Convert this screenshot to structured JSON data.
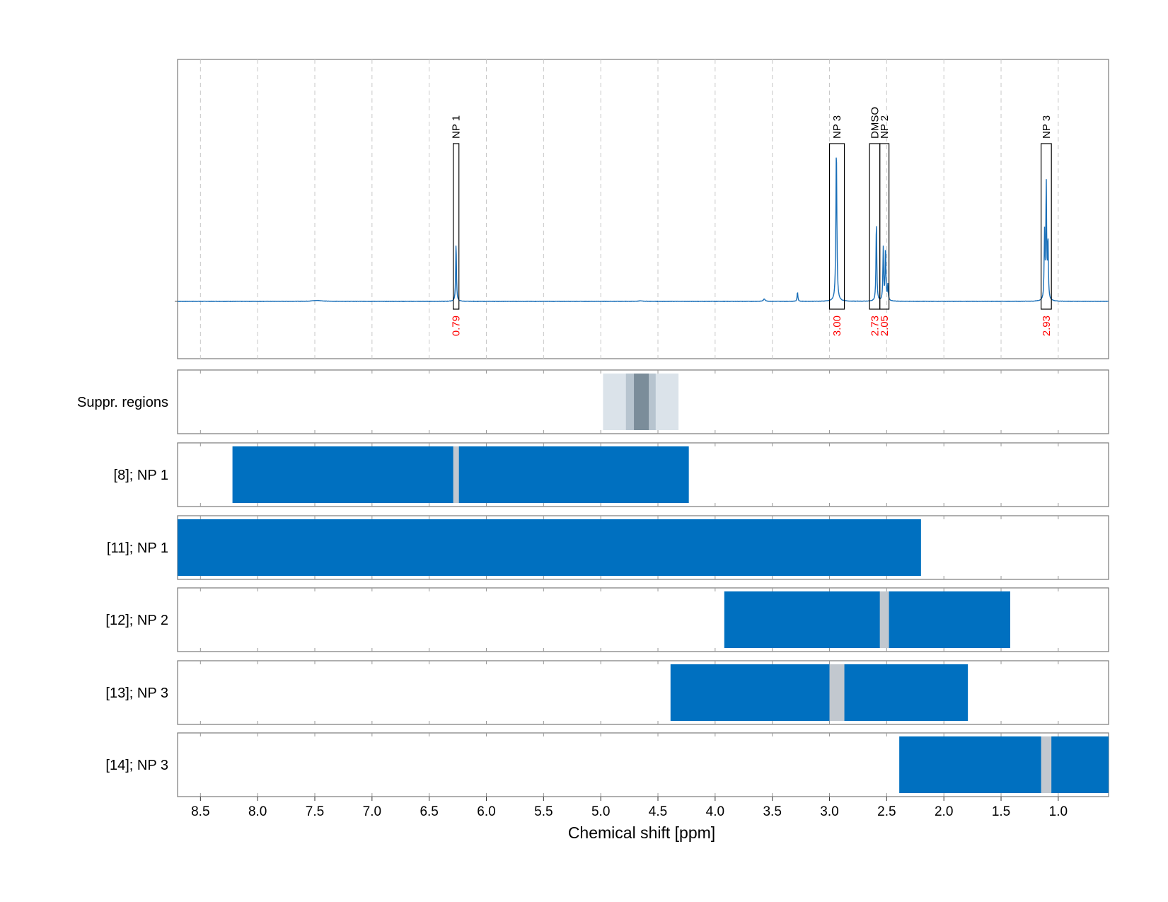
{
  "chart_data": {
    "type": "line",
    "xlabel": "Chemical shift [ppm]",
    "xlim": [
      8.7,
      0.56
    ],
    "x_ticks": [
      8.5,
      8.0,
      7.5,
      7.0,
      6.5,
      6.0,
      5.5,
      5.0,
      4.5,
      4.0,
      3.5,
      3.0,
      2.5,
      2.0,
      1.5,
      1.0
    ],
    "x_tick_labels": [
      "8.5",
      "8.0",
      "7.5",
      "7.0",
      "6.5",
      "6.0",
      "5.5",
      "5.0",
      "4.5",
      "4.0",
      "3.5",
      "3.0",
      "2.5",
      "2.0",
      "1.5",
      "1.0"
    ],
    "grid": true,
    "colors": {
      "spectrum": "#1a6fb8",
      "fragment": "#0070c0",
      "gap": "#c2c8cf",
      "integral_text": "#ff0000",
      "frame": "#7a7a7a"
    },
    "spectrum": {
      "baseline_noise": 0.002,
      "peaks": [
        {
          "center": 6.265,
          "height": 0.38,
          "width": 0.004
        },
        {
          "center": 2.94,
          "height": 0.99,
          "width": 0.005
        },
        {
          "center": 2.59,
          "height": 0.52,
          "width": 0.004
        },
        {
          "center": 2.53,
          "height": 0.34,
          "width": 0.004
        },
        {
          "center": 2.51,
          "height": 0.35,
          "width": 0.004
        },
        {
          "center": 2.49,
          "height": 0.1,
          "width": 0.004
        },
        {
          "center": 1.12,
          "height": 0.42,
          "width": 0.004
        },
        {
          "center": 1.105,
          "height": 0.75,
          "width": 0.004
        },
        {
          "center": 1.09,
          "height": 0.38,
          "width": 0.004
        },
        {
          "center": 3.28,
          "height": 0.06,
          "width": 0.004
        },
        {
          "center": 3.57,
          "height": 0.015,
          "width": 0.01
        },
        {
          "center": 7.48,
          "height": 0.006,
          "width": 0.05
        },
        {
          "center": 4.65,
          "height": 0.003,
          "width": 0.03
        }
      ]
    },
    "annotated_regions": [
      {
        "label": "NP 1",
        "from": 6.29,
        "to": 6.24,
        "integral": "0.79"
      },
      {
        "label": "NP 3",
        "from": 3.0,
        "to": 2.87,
        "integral": "3.00"
      },
      {
        "label": "DMSO",
        "from": 2.65,
        "to": 2.56,
        "integral": "2.73"
      },
      {
        "label": "NP 2",
        "from": 2.56,
        "to": 2.48,
        "integral": "2.05"
      },
      {
        "label": "NP 3",
        "from": 1.15,
        "to": 1.06,
        "integral": "2.93"
      }
    ],
    "suppression_row": {
      "label": "Suppr. regions",
      "bands": [
        {
          "from": 4.98,
          "to": 4.32,
          "level": "light"
        },
        {
          "from": 4.78,
          "to": 4.52,
          "level": "medium"
        },
        {
          "from": 4.71,
          "to": 4.58,
          "level": "dark"
        }
      ]
    },
    "fragment_rows": [
      {
        "label": "[8]; NP 1",
        "from": 8.22,
        "to": 4.23,
        "gaps": [
          {
            "from": 6.29,
            "to": 6.24
          }
        ]
      },
      {
        "label": "[11]; NP 1",
        "from": 8.7,
        "to": 2.2,
        "gaps": []
      },
      {
        "label": "[12]; NP 2",
        "from": 3.92,
        "to": 1.42,
        "gaps": [
          {
            "from": 2.56,
            "to": 2.48
          }
        ]
      },
      {
        "label": "[13]; NP 3",
        "from": 4.39,
        "to": 1.79,
        "gaps": [
          {
            "from": 3.0,
            "to": 2.87
          }
        ]
      },
      {
        "label": "[14]; NP 3",
        "from": 2.39,
        "to": 0.56,
        "gaps": [
          {
            "from": 1.15,
            "to": 1.06
          }
        ]
      }
    ]
  }
}
